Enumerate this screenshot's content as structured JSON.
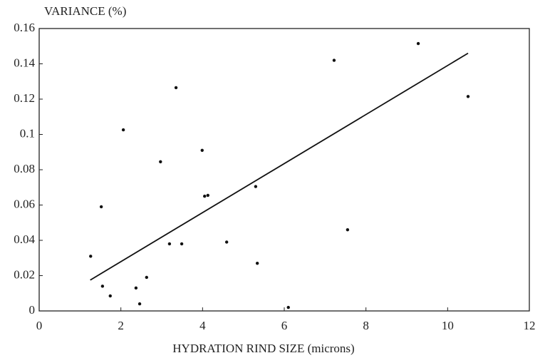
{
  "chart_data": {
    "type": "scatter",
    "title": "VARIANCE (%)",
    "x_label": "HYDRATION RIND SIZE (microns)",
    "x": [
      1.26,
      1.52,
      1.55,
      1.74,
      2.06,
      2.37,
      2.46,
      2.63,
      2.97,
      3.19,
      3.35,
      3.49,
      3.99,
      4.05,
      4.13,
      4.59,
      5.3,
      5.34,
      6.1,
      7.22,
      7.55,
      9.28,
      10.5
    ],
    "values": [
      0.031,
      0.059,
      0.014,
      0.0085,
      0.1026,
      0.013,
      0.004,
      0.019,
      0.0845,
      0.038,
      0.1265,
      0.038,
      0.091,
      0.065,
      0.0655,
      0.039,
      0.0705,
      0.027,
      0.002,
      0.142,
      0.046,
      0.1515,
      0.1215
    ],
    "color": "#111111",
    "trendline": {
      "x": [
        1.25,
        10.5
      ],
      "y": [
        0.0175,
        0.146
      ],
      "color": "#111111"
    },
    "xlim": [
      0,
      12
    ],
    "xticks": [
      0,
      2,
      4,
      6,
      8,
      10,
      12
    ],
    "ylim": [
      0,
      0.16
    ],
    "yticks": [
      0,
      0.02,
      0.04,
      0.06,
      0.08,
      0.1,
      0.12,
      0.14,
      0.16
    ],
    "grid": false
  }
}
